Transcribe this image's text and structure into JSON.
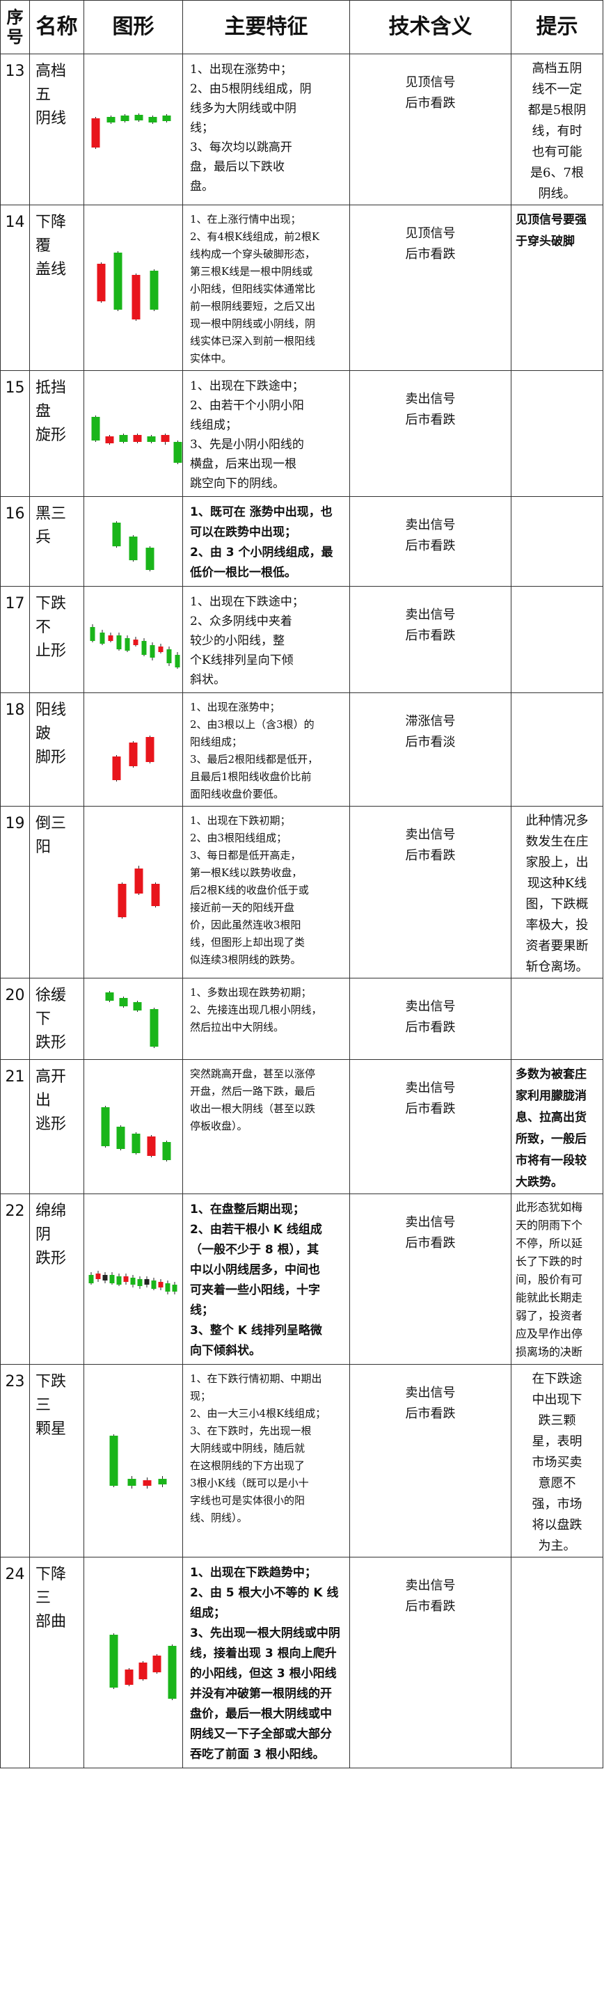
{
  "header": {
    "no": "序号",
    "name": "名称",
    "figure": "图形",
    "features": "主要特征",
    "meaning": "技术含义",
    "tip": "提示"
  },
  "colors": {
    "bull": "#e8151c",
    "bear": "#1ab51a",
    "wick": "#222222"
  },
  "rows": [
    {
      "no": "13",
      "name": [
        "高档五",
        "阴线"
      ],
      "figure": "high-five-bear-candles",
      "features": [
        "1、出现在涨势中；",
        "2、由5根阴线组成，阴",
        "线多为大阴线或中阴",
        "线；",
        "3、每次均以跳高开",
        "盘，最后以下跌收",
        "盘。"
      ],
      "meaning": [
        "见顶信号",
        "后市看跌"
      ],
      "tip": [
        "高档五阴",
        "线不一定",
        "都是5根阴",
        "线，有时",
        "也有可能",
        "是6、7根",
        "阴线。"
      ]
    },
    {
      "no": "14",
      "name": [
        "下降覆",
        "盖线"
      ],
      "figure": "descending-cover-line",
      "features": [
        "1、在上涨行情中出现；",
        "2、有4根K线组成，前2根K",
        "线构成一个穿头破脚形态，",
        "第三根K线是一根中阴线或",
        "小阳线，但阳线实体通常比",
        "前一根阴线要短，之后又出",
        "现一根中阴线或小阴线，阴",
        "线实体已深入到前一根阳线",
        "实体中。"
      ],
      "meaning": [
        "见顶信号",
        "后市看跌"
      ],
      "tip": [
        "见顶信号要强",
        "于穿头破脚"
      ]
    },
    {
      "no": "15",
      "name": [
        "抵挡盘",
        "旋形"
      ],
      "figure": "resistance-spin",
      "features": [
        "1、出现在下跌途中；",
        "2、由若干个小阴小阳",
        "线组成；",
        "3、先是小阴小阳线的",
        "横盘，后来出现一根",
        "跳空向下的阴线。"
      ],
      "meaning": [
        "卖出信号",
        "后市看跌"
      ],
      "tip": []
    },
    {
      "no": "16",
      "name": [
        "黑三兵"
      ],
      "figure": "three-black-crows",
      "features": [
        "1、既可在 涨势中出现，也",
        "可以在跌势中出现；",
        "2、由 3 个小阴线组成，最",
        "低价一根比一根低。"
      ],
      "meaning": [
        "卖出信号",
        "后市看跌"
      ],
      "tip": []
    },
    {
      "no": "17",
      "name": [
        "下跌不",
        "止形"
      ],
      "figure": "continuous-decline",
      "features": [
        "1、出现在下跌途中；",
        "2、众多阴线中夹着",
        "较少的小阳线，整",
        "个K线排列呈向下倾",
        "斜状。"
      ],
      "meaning": [
        "卖出信号",
        "后市看跌"
      ],
      "tip": []
    },
    {
      "no": "18",
      "name": [
        "阳线跛",
        "脚形"
      ],
      "figure": "lame-bull",
      "features": [
        "1、出现在涨势中；",
        "2、由3根以上（含3根）的",
        "阳线组成；",
        "3、最后2根阳线都是低开，",
        "且最后1根阳线收盘价比前",
        "面阳线收盘价要低。"
      ],
      "meaning": [
        "滞涨信号",
        "后市看淡"
      ],
      "tip": []
    },
    {
      "no": "19",
      "name": [
        "倒三阳"
      ],
      "figure": "inverted-three-bulls",
      "features": [
        "1、出现在下跌初期；",
        "2、由3根阳线组成；",
        "3、每日都是低开高走，",
        "第一根K线以跌势收盘，",
        "后2根K线的收盘价低于或",
        "接近前一天的阳线开盘",
        "价，因此虽然连收3根阳",
        "线，但图形上却出现了类",
        "似连续3根阴线的跌势。"
      ],
      "meaning": [
        "卖出信号",
        "后市看跌"
      ],
      "tip": [
        "此种情况多",
        "数发生在庄",
        "家股上，出",
        "现这种K线",
        "图，下跌概",
        "率极大，投",
        "资者要果断",
        "斩仓离场。"
      ]
    },
    {
      "no": "20",
      "name": [
        "徐缓下",
        "跌形"
      ],
      "figure": "slow-decline",
      "features": [
        "1、多数出现在跌势初期；",
        "2、先接连出现几根小阴线，",
        "然后拉出中大阴线。"
      ],
      "meaning": [
        "卖出信号",
        "后市看跌"
      ],
      "tip": []
    },
    {
      "no": "21",
      "name": [
        "高开出",
        "逃形"
      ],
      "figure": "high-open-escape",
      "features": [
        "突然跳高开盘，甚至以涨停",
        "开盘，然后一路下跌，最后",
        "收出一根大阴线（甚至以跌",
        "停板收盘）。"
      ],
      "meaning": [
        "卖出信号",
        "后市看跌"
      ],
      "tip": [
        "多数为被套庄",
        "家利用朦胧消",
        "息、拉高出货",
        "所致，一般后",
        "市将有一段较",
        "大跌势。"
      ]
    },
    {
      "no": "22",
      "name": [
        "绵绵阴",
        "跌形"
      ],
      "figure": "prolonged-bear-decline",
      "features": [
        "1、在盘整后期出现；",
        "2、由若干根小 K 线组成",
        "（一般不少于 8 根），其",
        "中以小阴线居多，中间也",
        "可夹着一些小阳线，十字",
        "线；",
        "3、整个 K 线排列呈略微",
        "向下倾斜状。"
      ],
      "meaning": [
        "卖出信号",
        "后市看跌"
      ],
      "tip": [
        "此形态犹如梅",
        "天的阴雨下个",
        "不停，所以延",
        "长了下跌的时",
        "间，股价有可",
        "能就此长期走",
        "弱了，投资者",
        "应及早作出停",
        "损离场的决断"
      ]
    },
    {
      "no": "23",
      "name": [
        "下跌三",
        "颗星"
      ],
      "figure": "falling-three-stars",
      "features": [
        "1、在下跌行情初期、中期出",
        "现；",
        "2、由一大三小4根K线组成；",
        "3、在下跌时，先出现一根",
        "大阴线或中阴线，随后就",
        "在这根阴线的下方出现了",
        "3根小K线（既可以是小十",
        "字线也可是实体很小的阳",
        "线、阴线）。"
      ],
      "meaning": [
        "卖出信号",
        "后市看跌"
      ],
      "tip": [
        "在下跌途",
        "中出现下",
        "跌三颗",
        "星，表明",
        "市场买卖",
        "意愿不",
        "强，市场",
        "将以盘跌",
        "为主。"
      ]
    },
    {
      "no": "24",
      "name": [
        "下降三",
        "部曲"
      ],
      "figure": "falling-three-methods",
      "features": [
        "1、出现在下跌趋势中；",
        "2、由 5 根大小不等的 K 线",
        "组成；",
        "3、先出现一根大阴线或中阴",
        "线，接着出现 3 根向上爬升",
        "的小阳线，但这 3 根小阳线",
        "并没有冲破第一根阴线的开",
        "盘价，最后一根大阴线或中",
        "阴线又一下子全部或大部分",
        "吞吃了前面 3 根小阳线。"
      ],
      "meaning": [
        "卖出信号",
        "后市看跌"
      ],
      "tip": []
    }
  ]
}
